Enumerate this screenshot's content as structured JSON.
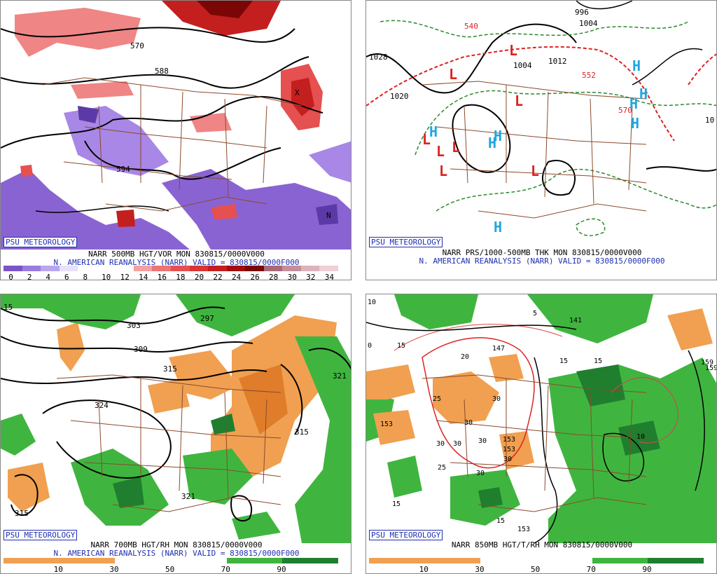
{
  "panels": [
    {
      "id": "tl",
      "badge": "PSU METEOROLOGY",
      "caption1": "NARR 500MB HGT/VOR MON 830815/0000V000",
      "caption2": "N. AMERICAN REANALYSIS (NARR) VALID = 830815/0000F000",
      "colorbar_labels": [
        "0",
        "2",
        "4",
        "6",
        "8",
        "10",
        "12",
        "14",
        "16",
        "18",
        "20",
        "22",
        "24",
        "26",
        "28",
        "30",
        "32",
        "34"
      ],
      "colorbar_colors": [
        "#7b54c8",
        "#9a7ce0",
        "#b9a6ee",
        "#e7e1fb",
        "#ffffff",
        "#ffffff",
        "#ffffff",
        "#f4a0a0",
        "#ee7373",
        "#e55050",
        "#d93535",
        "#c41f1f",
        "#a20e0e",
        "#7b0606",
        "#a86a7a",
        "#c58f9a",
        "#dcb3bb",
        "#f0cfd6"
      ],
      "map_labels": [
        "570",
        "588",
        "594",
        "N",
        "X"
      ]
    },
    {
      "id": "tr",
      "badge": "PSU METEOROLOGY",
      "caption1": "NARR PRS/1000-500MB THK MON 830815/0000V000",
      "caption2": "N. AMERICAN REANALYSIS (NARR) VALID = 830815/0000F000",
      "map_labels": [
        "996",
        "1004",
        "1012",
        "1020",
        "1028",
        "1004",
        "552",
        "570",
        "540",
        "10"
      ],
      "pressure_centers": [
        "L",
        "H"
      ]
    },
    {
      "id": "bl",
      "badge": "PSU METEOROLOGY",
      "caption1": "NARR 700MB HGT/RH MON 830815/0000V000",
      "caption2": "N. AMERICAN REANALYSIS (NARR) VALID = 830815/0000F000",
      "colorbar_labels": [
        "10",
        "30",
        "50",
        "70",
        "90"
      ],
      "map_labels": [
        "15",
        "303",
        "309",
        "297",
        "315",
        "321",
        "324",
        "315",
        "321",
        "315"
      ]
    },
    {
      "id": "br",
      "badge": "PSU METEOROLOGY",
      "caption1": "NARR 850MB HGT/T/RH MON 830815/0000V000",
      "colorbar_labels": [
        "10",
        "30",
        "50",
        "70",
        "90"
      ],
      "map_labels": [
        "10",
        "5",
        "141",
        "147",
        "153",
        "15",
        "20",
        "25",
        "30",
        "0",
        "159",
        "153",
        "15",
        "15",
        "10",
        "30",
        "25",
        "15",
        "15",
        "30",
        "30",
        "153",
        "30",
        "30",
        "30",
        "159",
        "153"
      ]
    }
  ]
}
